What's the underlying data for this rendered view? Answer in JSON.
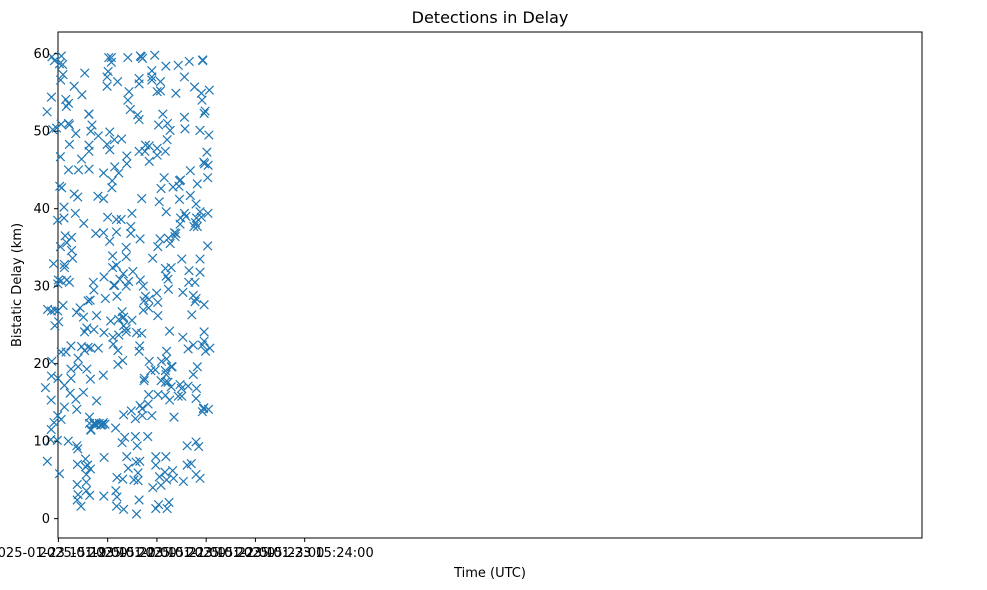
{
  "chart_data": {
    "type": "scatter",
    "title": "Detections in Delay",
    "xlabel": "Time (UTC)",
    "ylabel": "Bistatic Delay (km)",
    "marker": "x",
    "color": "#1f77b4",
    "grid": false,
    "legend": "none",
    "xlim_seconds_after_15_19": [
      -0.5,
      1052
    ],
    "ylim": [
      -2.5,
      62.8
    ],
    "x_ticks": [
      {
        "t": 0,
        "label": "2025-01-23 15:19:00"
      },
      {
        "t": 60,
        "label": "2025-01-23 15:20:00"
      },
      {
        "t": 120,
        "label": "2025-01-23 15:21:00"
      },
      {
        "t": 180,
        "label": "2025-01-23 15:22:00"
      },
      {
        "t": 240,
        "label": "2025-01-23 15:23:00"
      },
      {
        "t": 300,
        "label": "2025-01-23 15:24:00"
      }
    ],
    "y_ticks": [
      {
        "v": 0,
        "label": "0"
      },
      {
        "v": 10,
        "label": "10"
      },
      {
        "v": 20,
        "label": "20"
      },
      {
        "v": 30,
        "label": "30"
      },
      {
        "v": 40,
        "label": "40"
      },
      {
        "v": 50,
        "label": "50"
      },
      {
        "v": 60,
        "label": "60"
      }
    ],
    "points": [
      [
        -15.8,
        16.9
      ],
      [
        -13.5,
        7.4
      ],
      [
        -13.8,
        52.5
      ],
      [
        -13.2,
        27.0
      ],
      [
        -9.4,
        10.2
      ],
      [
        -8.8,
        11.5
      ],
      [
        -8.8,
        15.3
      ],
      [
        -8.5,
        18.4
      ],
      [
        -8.1,
        20.3
      ],
      [
        -8.5,
        26.8
      ],
      [
        -8.5,
        54.4
      ],
      [
        -7.9,
        59.6
      ],
      [
        -6.9,
        50.2
      ],
      [
        -5.9,
        32.9
      ],
      [
        -5.3,
        12.4
      ],
      [
        -4.8,
        59.1
      ],
      [
        -4.6,
        26.9
      ],
      [
        -4.3,
        24.9
      ],
      [
        -2.2,
        50.4
      ],
      [
        -1.3,
        10.1
      ],
      [
        -0.8,
        13.3
      ],
      [
        -0.5,
        18.1
      ],
      [
        -0.8,
        26.8
      ],
      [
        -1.0,
        38.5
      ],
      [
        -0.8,
        30.3
      ],
      [
        0.0,
        30.8
      ],
      [
        0.3,
        25.4
      ],
      [
        1.3,
        5.8
      ],
      [
        1.3,
        58.7
      ],
      [
        1.6,
        42.9
      ],
      [
        2.4,
        35.1
      ],
      [
        2.4,
        46.7
      ],
      [
        2.7,
        56.6
      ],
      [
        3.3,
        12.8
      ],
      [
        3.3,
        21.5
      ],
      [
        3.3,
        50.9
      ],
      [
        3.6,
        59.7
      ],
      [
        4.0,
        42.7
      ],
      [
        3.3,
        30.7
      ],
      [
        5.2,
        58.6
      ],
      [
        5.6,
        57.3
      ],
      [
        5.6,
        27.5
      ],
      [
        6.8,
        38.8
      ],
      [
        6.8,
        40.2
      ],
      [
        7.3,
        32.4
      ],
      [
        7.3,
        32.8
      ],
      [
        7.3,
        17.2
      ],
      [
        7.3,
        14.4
      ],
      [
        8.2,
        36.5
      ],
      [
        9.3,
        21.5
      ],
      [
        9.0,
        54.1
      ],
      [
        9.7,
        53.2
      ],
      [
        10.2,
        35.6
      ],
      [
        10.2,
        30.8
      ],
      [
        12.0,
        10.0
      ],
      [
        12.3,
        53.6
      ],
      [
        12.3,
        51.0
      ],
      [
        12.3,
        45.0
      ],
      [
        13.4,
        48.3
      ],
      [
        13.4,
        50.8
      ],
      [
        13.4,
        30.5
      ],
      [
        14.3,
        16.2
      ],
      [
        15.3,
        22.3
      ],
      [
        15.3,
        18.1
      ],
      [
        15.3,
        19.3
      ],
      [
        16.0,
        34.6
      ],
      [
        16.0,
        36.3
      ],
      [
        17.3,
        33.6
      ],
      [
        19.2,
        41.9
      ],
      [
        19.2,
        55.8
      ],
      [
        20.6,
        39.4
      ],
      [
        21.2,
        15.4
      ],
      [
        21.2,
        49.7
      ],
      [
        22.1,
        26.6
      ],
      [
        22.4,
        14.1
      ],
      [
        22.4,
        9.4
      ],
      [
        22.9,
        4.4
      ],
      [
        22.9,
        2.4
      ],
      [
        23.3,
        7.0
      ],
      [
        23.6,
        9.0
      ],
      [
        23.6,
        41.5
      ],
      [
        24.0,
        3.1
      ],
      [
        24.0,
        19.6
      ],
      [
        24.0,
        20.7
      ],
      [
        24.5,
        45.0
      ],
      [
        26.4,
        27.2
      ],
      [
        27.5,
        1.6
      ],
      [
        28.2,
        46.4
      ],
      [
        28.7,
        54.7
      ],
      [
        28.2,
        22.2
      ],
      [
        30.5,
        16.3
      ],
      [
        30.5,
        26.0
      ],
      [
        30.9,
        38.1
      ],
      [
        31.9,
        24.1
      ],
      [
        31.9,
        21.7
      ],
      [
        32.1,
        57.5
      ],
      [
        33.0,
        7.7
      ],
      [
        33.0,
        6.7
      ],
      [
        34.0,
        5.7
      ],
      [
        34.0,
        4.7
      ],
      [
        34.0,
        3.6
      ],
      [
        34.6,
        24.6
      ],
      [
        34.6,
        19.3
      ],
      [
        35.6,
        6.9
      ],
      [
        36.2,
        28.1
      ],
      [
        36.2,
        22.1
      ],
      [
        37.0,
        52.2
      ],
      [
        37.3,
        48.2
      ],
      [
        37.3,
        47.4
      ],
      [
        37.3,
        45.1
      ],
      [
        37.3,
        52.2
      ],
      [
        37.9,
        13.1
      ],
      [
        37.9,
        12.3
      ],
      [
        38.1,
        3.0
      ],
      [
        38.7,
        28.2
      ],
      [
        39.5,
        11.5
      ],
      [
        39.0,
        6.4
      ],
      [
        39.0,
        18.0
      ],
      [
        39.5,
        22.0
      ],
      [
        39.5,
        50.0
      ],
      [
        39.5,
        11.4
      ],
      [
        40.9,
        50.8
      ],
      [
        42.5,
        30.5
      ],
      [
        43.2,
        29.5
      ],
      [
        43.2,
        24.4
      ],
      [
        43.2,
        12.3
      ],
      [
        43.6,
        12.2
      ],
      [
        45.2,
        12.2
      ],
      [
        46.0,
        12.1
      ],
      [
        45.5,
        36.8
      ],
      [
        46.5,
        15.2
      ],
      [
        46.5,
        26.2
      ],
      [
        48.1,
        41.6
      ],
      [
        48.6,
        22.0
      ],
      [
        48.6,
        49.4
      ],
      [
        49.7,
        12.3
      ],
      [
        51.3,
        12.1
      ],
      [
        52.5,
        12.1
      ],
      [
        54.1,
        12.2
      ],
      [
        54.7,
        18.5
      ],
      [
        54.7,
        12.4
      ],
      [
        55.0,
        44.6
      ],
      [
        55.0,
        41.3
      ],
      [
        55.0,
        36.9
      ],
      [
        55.3,
        2.9
      ],
      [
        55.6,
        7.9
      ],
      [
        55.6,
        31.2
      ],
      [
        55.6,
        24.0
      ],
      [
        56.8,
        12.2
      ],
      [
        57.2,
        28.4
      ],
      [
        59.3,
        48.3
      ],
      [
        59.3,
        55.8
      ],
      [
        59.3,
        57.0
      ],
      [
        60.0,
        38.9
      ],
      [
        60.6,
        57.7
      ],
      [
        61.3,
        59.5
      ],
      [
        62.5,
        47.6
      ],
      [
        62.5,
        49.9
      ],
      [
        62.5,
        35.8
      ],
      [
        63.7,
        25.5
      ],
      [
        64.5,
        59.5
      ],
      [
        64.5,
        58.9
      ],
      [
        65.1,
        42.7
      ],
      [
        65.5,
        43.6
      ],
      [
        66.0,
        33.9
      ],
      [
        66.0,
        32.4
      ],
      [
        66.4,
        23.4
      ],
      [
        66.8,
        22.5
      ],
      [
        67.4,
        30.1
      ],
      [
        68.1,
        48.9
      ],
      [
        68.6,
        30.1
      ],
      [
        68.6,
        45.4
      ],
      [
        69.7,
        11.7
      ],
      [
        70.0,
        3.6
      ],
      [
        70.7,
        38.6
      ],
      [
        70.7,
        37.0
      ],
      [
        70.7,
        32.7
      ],
      [
        70.9,
        1.6
      ],
      [
        71.3,
        2.8
      ],
      [
        71.3,
        5.3
      ],
      [
        71.3,
        28.7
      ],
      [
        72.1,
        56.4
      ],
      [
        72.5,
        21.7
      ],
      [
        72.5,
        19.9
      ],
      [
        73.5,
        25.7
      ],
      [
        73.5,
        23.7
      ],
      [
        73.5,
        44.6
      ],
      [
        74.9,
        30.9
      ],
      [
        76.4,
        38.6
      ],
      [
        77.0,
        49.0
      ],
      [
        77.6,
        26.7
      ],
      [
        77.6,
        9.8
      ],
      [
        78.3,
        25.9
      ],
      [
        78.3,
        20.4
      ],
      [
        78.3,
        5.1
      ],
      [
        79.1,
        31.6
      ],
      [
        79.5,
        26.0
      ],
      [
        79.5,
        24.9
      ],
      [
        79.5,
        13.4
      ],
      [
        79.5,
        1.2
      ],
      [
        80.7,
        10.5
      ],
      [
        82.6,
        24.5
      ],
      [
        82.6,
        24.1
      ],
      [
        82.6,
        30.0
      ],
      [
        82.6,
        33.8
      ],
      [
        82.6,
        35.0
      ],
      [
        83.3,
        8.0
      ],
      [
        83.3,
        45.8
      ],
      [
        83.3,
        46.8
      ],
      [
        84.6,
        54.0
      ],
      [
        84.6,
        59.5
      ],
      [
        85.1,
        6.5
      ],
      [
        85.5,
        30.6
      ],
      [
        86.0,
        55.1
      ],
      [
        87.6,
        52.8
      ],
      [
        88.2,
        36.8
      ],
      [
        88.2,
        37.7
      ],
      [
        88.8,
        13.9
      ],
      [
        89.6,
        39.4
      ],
      [
        89.6,
        25.6
      ],
      [
        90.7,
        31.9
      ],
      [
        92.0,
        5.0
      ],
      [
        93.8,
        12.9
      ],
      [
        93.8,
        10.6
      ],
      [
        94.5,
        7.3
      ],
      [
        95.2,
        0.6
      ],
      [
        95.2,
        24.0
      ],
      [
        96.0,
        9.4
      ],
      [
        96.5,
        52.1
      ],
      [
        97.0,
        4.9
      ],
      [
        97.0,
        5.9
      ],
      [
        98.3,
        2.4
      ],
      [
        98.3,
        21.6
      ],
      [
        98.3,
        51.5
      ],
      [
        98.3,
        47.4
      ],
      [
        98.3,
        56.1
      ],
      [
        98.3,
        56.8
      ],
      [
        99.1,
        22.3
      ],
      [
        99.1,
        7.4
      ],
      [
        99.5,
        36.1
      ],
      [
        99.5,
        14.6
      ],
      [
        99.8,
        30.8
      ],
      [
        99.8,
        59.7
      ],
      [
        101.0,
        59.6
      ],
      [
        101.5,
        41.3
      ],
      [
        101.5,
        23.9
      ],
      [
        102.5,
        59.4
      ],
      [
        102.1,
        14.2
      ],
      [
        102.1,
        13.3
      ],
      [
        103.4,
        30.0
      ],
      [
        103.4,
        26.9
      ],
      [
        104.3,
        17.8
      ],
      [
        104.3,
        28.1
      ],
      [
        104.7,
        18.1
      ],
      [
        105.4,
        47.4
      ],
      [
        106.1,
        48.2
      ],
      [
        106.1,
        28.7
      ],
      [
        108.8,
        10.6
      ],
      [
        109.3,
        14.8
      ],
      [
        109.9,
        16.0
      ],
      [
        109.9,
        27.2
      ],
      [
        110.3,
        28.3
      ],
      [
        110.6,
        46.1
      ],
      [
        110.6,
        48.1
      ],
      [
        110.6,
        20.3
      ],
      [
        112.7,
        19.1
      ],
      [
        113.8,
        57.0
      ],
      [
        113.8,
        56.6
      ],
      [
        113.8,
        13.3
      ],
      [
        113.8,
        57.8
      ],
      [
        114.8,
        33.6
      ],
      [
        115.0,
        4.0
      ],
      [
        117.4,
        59.8
      ],
      [
        118.0,
        19.2
      ],
      [
        118.6,
        1.3
      ],
      [
        118.6,
        6.9
      ],
      [
        118.6,
        8.0
      ],
      [
        119.7,
        29.1
      ],
      [
        120.3,
        47.8
      ],
      [
        120.3,
        46.9
      ],
      [
        120.3,
        55.1
      ],
      [
        121.1,
        35.1
      ],
      [
        121.1,
        27.9
      ],
      [
        121.1,
        26.2
      ],
      [
        121.3,
        16.0
      ],
      [
        122.1,
        1.8
      ],
      [
        122.1,
        50.8
      ],
      [
        122.8,
        40.9
      ],
      [
        123.1,
        5.4
      ],
      [
        123.8,
        36.1
      ],
      [
        124.3,
        56.4
      ],
      [
        124.3,
        55.2
      ],
      [
        125.0,
        4.3
      ],
      [
        125.0,
        42.6
      ],
      [
        125.0,
        17.8
      ],
      [
        125.6,
        20.3
      ],
      [
        127.2,
        52.2
      ],
      [
        128.8,
        44.0
      ],
      [
        129.8,
        6.0
      ],
      [
        130.3,
        47.4
      ],
      [
        130.3,
        32.3
      ],
      [
        130.3,
        19.1
      ],
      [
        130.3,
        17.6
      ],
      [
        130.3,
        15.9
      ],
      [
        130.9,
        8.0
      ],
      [
        130.9,
        58.4
      ],
      [
        131.3,
        31.3
      ],
      [
        131.3,
        39.6
      ],
      [
        131.3,
        18.6
      ],
      [
        131.8,
        20.6
      ],
      [
        131.8,
        21.6
      ],
      [
        131.8,
        5.0
      ],
      [
        132.4,
        1.3
      ],
      [
        132.4,
        48.9
      ],
      [
        132.9,
        51.0
      ],
      [
        133.5,
        30.9
      ],
      [
        133.5,
        17.6
      ],
      [
        134.0,
        29.6
      ],
      [
        134.0,
        36.2
      ],
      [
        134.7,
        2.1
      ],
      [
        135.4,
        15.3
      ],
      [
        135.4,
        24.2
      ],
      [
        136.1,
        35.5
      ],
      [
        136.1,
        50.1
      ],
      [
        137.4,
        32.4
      ],
      [
        137.4,
        19.6
      ],
      [
        137.4,
        17.0
      ],
      [
        138.5,
        19.6
      ],
      [
        139.1,
        6.2
      ],
      [
        139.6,
        42.8
      ],
      [
        140.2,
        5.2
      ],
      [
        140.8,
        13.1
      ],
      [
        141.4,
        36.9
      ],
      [
        142.1,
        36.4
      ],
      [
        143.1,
        36.8
      ],
      [
        143.1,
        54.9
      ],
      [
        146.0,
        15.8
      ],
      [
        146.0,
        58.5
      ],
      [
        146.9,
        42.9
      ],
      [
        147.5,
        43.6
      ],
      [
        147.5,
        41.2
      ],
      [
        148.2,
        38.0
      ],
      [
        148.2,
        17.3
      ],
      [
        148.8,
        38.8
      ],
      [
        148.8,
        43.7
      ],
      [
        149.9,
        16.8
      ],
      [
        150.3,
        33.5
      ],
      [
        150.3,
        15.8
      ],
      [
        151.6,
        23.4
      ],
      [
        151.6,
        29.2
      ],
      [
        152.3,
        4.8
      ],
      [
        153.5,
        39.4
      ],
      [
        153.5,
        57.0
      ],
      [
        153.5,
        51.8
      ],
      [
        154.2,
        50.3
      ],
      [
        155.3,
        39.0
      ],
      [
        156.8,
        9.4
      ],
      [
        156.8,
        6.9
      ],
      [
        158.0,
        17.1
      ],
      [
        158.0,
        21.9
      ],
      [
        158.7,
        30.5
      ],
      [
        159.1,
        32.0
      ],
      [
        159.4,
        59.0
      ],
      [
        160.7,
        41.7
      ],
      [
        160.7,
        44.9
      ],
      [
        161.9,
        7.1
      ],
      [
        162.5,
        26.3
      ],
      [
        164.3,
        28.8
      ],
      [
        164.3,
        22.4
      ],
      [
        164.3,
        18.6
      ],
      [
        165.1,
        37.7
      ],
      [
        165.8,
        55.7
      ],
      [
        166.4,
        28.0
      ],
      [
        166.4,
        30.5
      ],
      [
        167.0,
        38.2
      ],
      [
        167.7,
        15.5
      ],
      [
        167.7,
        9.9
      ],
      [
        167.7,
        5.7
      ],
      [
        167.7,
        28.4
      ],
      [
        167.7,
        40.6
      ],
      [
        168.2,
        16.8
      ],
      [
        168.2,
        38.8
      ],
      [
        169.2,
        37.7
      ],
      [
        169.2,
        19.6
      ],
      [
        169.2,
        43.2
      ],
      [
        170.9,
        9.3
      ],
      [
        172.5,
        39.6
      ],
      [
        172.5,
        33.5
      ],
      [
        172.5,
        31.8
      ],
      [
        172.5,
        5.2
      ],
      [
        172.5,
        50.1
      ],
      [
        174.2,
        38.9
      ],
      [
        174.2,
        54.9
      ],
      [
        174.9,
        54.0
      ],
      [
        175.4,
        13.8
      ],
      [
        175.4,
        22.4
      ],
      [
        175.8,
        59.1
      ],
      [
        175.8,
        59.2
      ],
      [
        176.6,
        14.2
      ],
      [
        177.1,
        14.3
      ],
      [
        177.1,
        46.0
      ],
      [
        177.5,
        52.3
      ],
      [
        177.5,
        22.9
      ],
      [
        177.5,
        24.1
      ],
      [
        177.5,
        27.6
      ],
      [
        178.1,
        45.8
      ],
      [
        178.7,
        52.6
      ],
      [
        179.3,
        21.6
      ],
      [
        180.9,
        47.3
      ],
      [
        181.8,
        35.2
      ],
      [
        181.8,
        44.0
      ],
      [
        182.2,
        39.4
      ],
      [
        182.4,
        45.6
      ],
      [
        182.8,
        14.1
      ],
      [
        183.3,
        49.5
      ],
      [
        183.8,
        55.3
      ],
      [
        184.5,
        22.0
      ]
    ]
  }
}
